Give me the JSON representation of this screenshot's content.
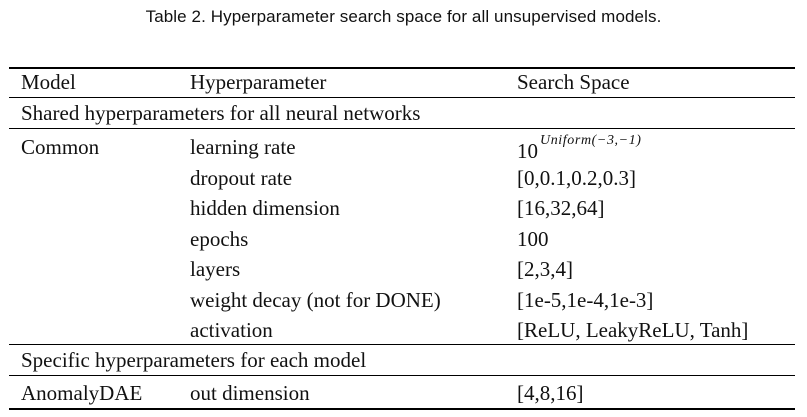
{
  "caption": "Table 2.  Hyperparameter search space for all unsupervised models.",
  "header": {
    "model": "Model",
    "hyperparameter": "Hyperparameter",
    "search_space": "Search Space"
  },
  "sections": [
    {
      "title": "Shared hyperparameters for all neural networks",
      "rows": [
        {
          "model": "Common",
          "param": "learning rate",
          "space_base": "10",
          "space_exp": "Uniform(−3,−1)"
        },
        {
          "model": "",
          "param": "dropout rate",
          "space": "[0,0.1,0.2,0.3]"
        },
        {
          "model": "",
          "param": "hidden dimension",
          "space": "[16,32,64]"
        },
        {
          "model": "",
          "param": "epochs",
          "space": "100"
        },
        {
          "model": "",
          "param": "layers",
          "space": "[2,3,4]"
        },
        {
          "model": "",
          "param": "weight decay (not for DONE)",
          "space": "[1e-5,1e-4,1e-3]"
        },
        {
          "model": "",
          "param": "activation",
          "space": "[ReLU, LeakyReLU, Tanh]"
        }
      ]
    },
    {
      "title": "Specific hyperparameters for each model",
      "rows": [
        {
          "model": "AnomalyDAE",
          "param": "out dimension",
          "space": "[4,8,16]"
        }
      ]
    }
  ]
}
